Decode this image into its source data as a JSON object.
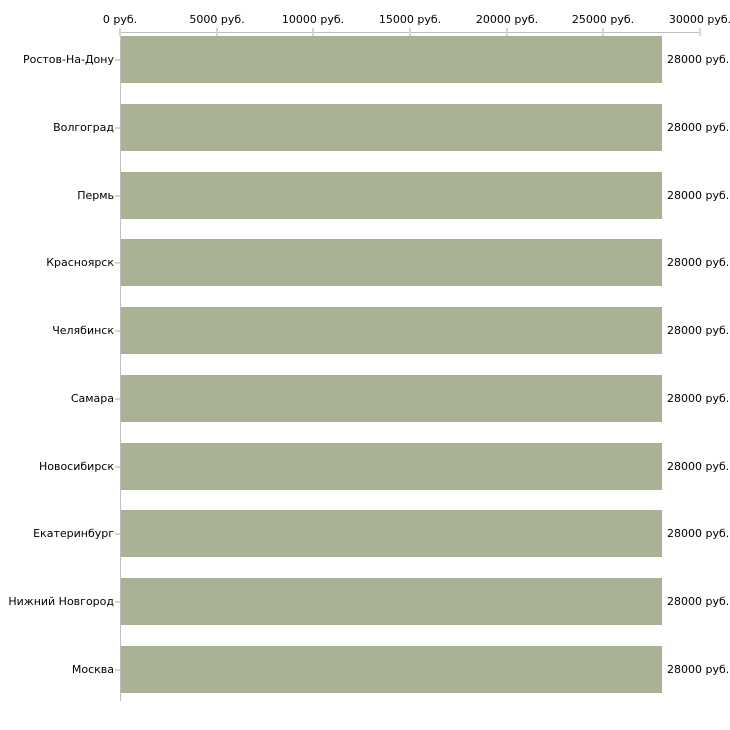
{
  "chart_data": {
    "type": "bar",
    "orientation": "horizontal",
    "title": "",
    "categories": [
      "Ростов-На-Дону",
      "Волгоград",
      "Пермь",
      "Красноярск",
      "Челябинск",
      "Самара",
      "Новосибирск",
      "Екатеринбург",
      "Нижний Новгород",
      "Москва"
    ],
    "values": [
      28000,
      28000,
      28000,
      28000,
      28000,
      28000,
      28000,
      28000,
      28000,
      28000
    ],
    "value_labels": [
      "28000 руб.",
      "28000 руб.",
      "28000 руб.",
      "28000 руб.",
      "28000 руб.",
      "28000 руб.",
      "28000 руб.",
      "28000 руб.",
      "28000 руб.",
      "28000 руб."
    ],
    "x_axis": {
      "position": "top",
      "range": [
        0,
        30000
      ],
      "ticks": [
        0,
        5000,
        10000,
        15000,
        20000,
        25000,
        30000
      ],
      "tick_labels": [
        "0 руб.",
        "5000 руб.",
        "10000 руб.",
        "15000 руб.",
        "20000 руб.",
        "25000 руб.",
        "30000 руб."
      ],
      "unit": "руб."
    },
    "ylabel": "",
    "xlabel": "",
    "grid": false,
    "legend": false,
    "colors": {
      "bar": "#aab296",
      "axis_line": "#bfbfbf",
      "tick_mark": "#d9dabd",
      "text": "#000000",
      "background": "#ffffff"
    }
  }
}
